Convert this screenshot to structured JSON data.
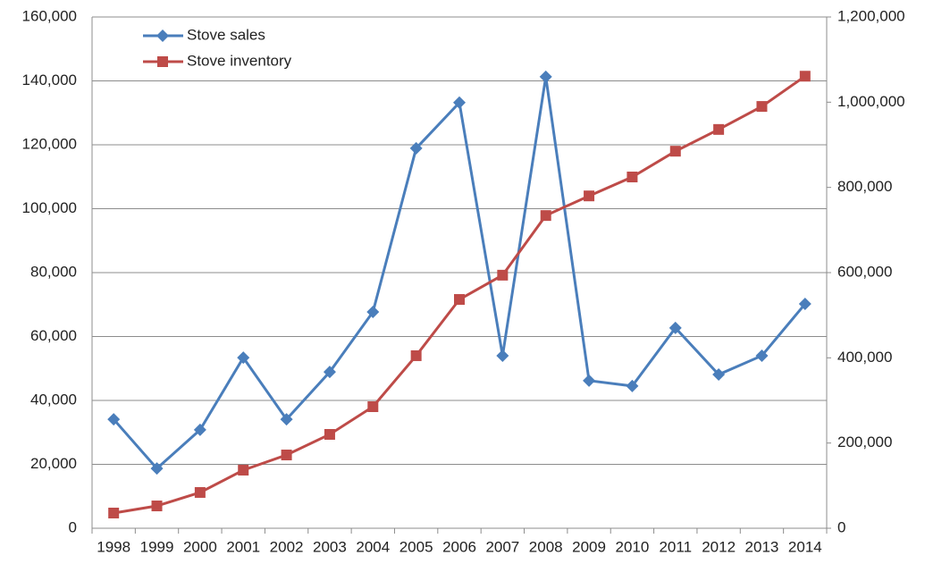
{
  "chart_data": {
    "type": "line",
    "categories": [
      "1998",
      "1999",
      "2000",
      "2001",
      "2002",
      "2003",
      "2004",
      "2005",
      "2006",
      "2007",
      "2008",
      "2009",
      "2010",
      "2011",
      "2012",
      "2013",
      "2014"
    ],
    "series": [
      {
        "name": "Stove sales",
        "color": "#4a7ebb",
        "axis": "y",
        "marker": "diamond",
        "values": [
          34100,
          18700,
          30800,
          53400,
          34100,
          48900,
          67700,
          118900,
          133200,
          54000,
          141300,
          46200,
          44500,
          62700,
          48100,
          54000,
          70200
        ]
      },
      {
        "name": "Stove inventory",
        "color": "#be4b48",
        "axis": "y2",
        "marker": "square",
        "values": [
          35700,
          52400,
          84000,
          136400,
          172000,
          220300,
          285300,
          405000,
          537000,
          594000,
          734000,
          780000,
          824500,
          885000,
          936000,
          990000,
          1061000
        ]
      }
    ],
    "ylim": [
      0,
      160000
    ],
    "yticks": [
      0,
      {
        "value": 20000,
        "label": "20,000"
      },
      {
        "value": 40000,
        "label": "40,000"
      },
      {
        "value": 60000,
        "label": "60,000"
      },
      {
        "value": 80000,
        "label": "80,000"
      },
      {
        "value": 100000,
        "label": "100,000"
      },
      {
        "value": 120000,
        "label": "120,000"
      },
      {
        "value": 140000,
        "label": "140,000"
      },
      {
        "value": 160000,
        "label": "160,000"
      }
    ],
    "y2lim": [
      0,
      1200000
    ],
    "y2ticks": [
      0,
      {
        "value": 200000,
        "label": "200,000"
      },
      {
        "value": 400000,
        "label": "400,000"
      },
      {
        "value": 600000,
        "label": "600,000"
      },
      {
        "value": 800000,
        "label": "800,000"
      },
      {
        "value": 1000000,
        "label": "1,000,000"
      },
      {
        "value": 1200000,
        "label": "1,200,000"
      }
    ],
    "grid": true,
    "legend": "top-left"
  }
}
